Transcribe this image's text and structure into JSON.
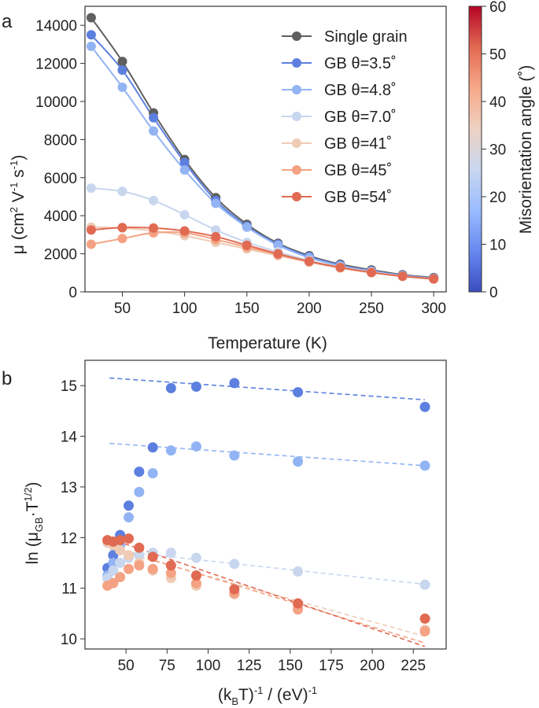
{
  "chart_data": [
    {
      "type": "line",
      "panel_label": "a",
      "xlabel": "Temperature (K)",
      "ylabel": {
        "base": "μ (cm",
        "sup1": "2",
        "mid1": " V",
        "sup2": "-1",
        "mid2": " s",
        "sup3": "-1",
        "end": ")"
      },
      "xlim": [
        20,
        310
      ],
      "ylim": [
        0,
        15000
      ],
      "xticks": [
        "50",
        "100",
        "150",
        "200",
        "250",
        "300"
      ],
      "xtick_values": [
        50,
        100,
        150,
        200,
        250,
        300
      ],
      "yticks": [
        "0",
        "2000",
        "4000",
        "6000",
        "8000",
        "10000",
        "12000",
        "14000"
      ],
      "ytick_values": [
        0,
        2000,
        4000,
        6000,
        8000,
        10000,
        12000,
        14000
      ],
      "grid": false,
      "legend_position": "top-right",
      "x": [
        25,
        50,
        75,
        100,
        125,
        150,
        175,
        200,
        225,
        250,
        275,
        300
      ],
      "series": [
        {
          "name": "Single grain",
          "color": "#5f5f5f",
          "values": [
            14400,
            12100,
            9400,
            6950,
            4950,
            3550,
            2550,
            1900,
            1450,
            1150,
            900,
            750
          ]
        },
        {
          "name": "GB θ=3.5˚",
          "color": "#5c7fe0",
          "values": [
            13500,
            11650,
            9150,
            6800,
            4800,
            3450,
            2500,
            1850,
            1400,
            1100,
            870,
            720
          ]
        },
        {
          "name": "GB θ=4.8˚",
          "color": "#92b4f4",
          "values": [
            12900,
            10750,
            8450,
            6400,
            4650,
            3400,
            2450,
            1800,
            1370,
            1080,
            850,
            700
          ]
        },
        {
          "name": "GB θ=7.0˚",
          "color": "#c8d6ee",
          "values": [
            5450,
            5280,
            4800,
            4050,
            3250,
            2600,
            2100,
            1650,
            1300,
            1050,
            830,
            690
          ]
        },
        {
          "name": "GB θ=41˚",
          "color": "#efcbb6",
          "values": [
            3400,
            3350,
            3200,
            2950,
            2600,
            2250,
            1900,
            1550,
            1250,
            1000,
            810,
            670
          ]
        },
        {
          "name": "GB θ=45˚",
          "color": "#f4a283",
          "values": [
            2500,
            2800,
            3100,
            3100,
            2750,
            2350,
            1950,
            1600,
            1280,
            1020,
            820,
            680
          ]
        },
        {
          "name": "GB θ=54˚",
          "color": "#e16a52",
          "values": [
            3250,
            3380,
            3350,
            3200,
            2900,
            2450,
            2000,
            1600,
            1280,
            1020,
            820,
            680
          ]
        }
      ],
      "colorbar": {
        "label": "Misorientation angle (˚)",
        "range": [
          0,
          60
        ],
        "ticks": [
          "0",
          "10",
          "20",
          "30",
          "40",
          "50",
          "60"
        ],
        "tick_values": [
          0,
          10,
          20,
          30,
          40,
          50,
          60
        ],
        "colormap": [
          "#3b4cc0",
          "#6788ee",
          "#9abbff",
          "#c9d7f0",
          "#edd1c2",
          "#f7a889",
          "#e26952",
          "#b40426"
        ]
      }
    },
    {
      "type": "scatter",
      "panel_label": "b",
      "xlabel": {
        "base": "(k",
        "sub": "B",
        "mid": "T)",
        "sup": "-1",
        "end": " / (eV)",
        "sup2": "-1"
      },
      "ylabel": {
        "base": "ln (μ",
        "sub": "GB",
        "mid": "·T",
        "sup": "1/2",
        "end": ")"
      },
      "xlim": [
        25,
        245
      ],
      "ylim": [
        9.8,
        15.5
      ],
      "xticks": [
        "50",
        "75",
        "100",
        "125",
        "150",
        "175",
        "200",
        "225"
      ],
      "xtick_values": [
        50,
        75,
        100,
        125,
        150,
        175,
        200,
        225
      ],
      "yticks": [
        "10",
        "11",
        "12",
        "13",
        "14",
        "15"
      ],
      "ytick_values": [
        10,
        11,
        12,
        13,
        14,
        15
      ],
      "grid": false,
      "series": [
        {
          "name": "GB θ=3.5˚",
          "color": "#5c7fe0",
          "points": [
            [
              38.7,
              11.4
            ],
            [
              42.2,
              11.65
            ],
            [
              46.4,
              12.05
            ],
            [
              51.6,
              12.63
            ],
            [
              58.0,
              13.3
            ],
            [
              66.3,
              13.78
            ],
            [
              77.4,
              14.95
            ],
            [
              92.8,
              14.98
            ],
            [
              116.0,
              15.05
            ],
            [
              154.7,
              14.87
            ],
            [
              232.1,
              14.58
            ]
          ],
          "fit": [
            [
              40,
              15.15
            ],
            [
              232,
              14.72
            ]
          ]
        },
        {
          "name": "GB θ=4.8˚",
          "color": "#92b4f4",
          "points": [
            [
              38.7,
              11.25
            ],
            [
              42.2,
              11.5
            ],
            [
              46.4,
              11.85
            ],
            [
              51.6,
              12.4
            ],
            [
              58.0,
              12.9
            ],
            [
              66.3,
              13.27
            ],
            [
              77.4,
              13.72
            ],
            [
              92.8,
              13.8
            ],
            [
              116.0,
              13.62
            ],
            [
              154.7,
              13.5
            ],
            [
              232.1,
              13.42
            ]
          ],
          "fit": [
            [
              40,
              13.86
            ],
            [
              232,
              13.42
            ]
          ]
        },
        {
          "name": "GB θ=7.0˚",
          "color": "#c8d6ee",
          "points": [
            [
              38.7,
              11.2
            ],
            [
              42.2,
              11.35
            ],
            [
              46.4,
              11.5
            ],
            [
              51.6,
              11.6
            ],
            [
              58.0,
              11.65
            ],
            [
              66.3,
              11.7
            ],
            [
              77.4,
              11.7
            ],
            [
              92.8,
              11.6
            ],
            [
              116.0,
              11.48
            ],
            [
              154.7,
              11.33
            ],
            [
              232.1,
              11.07
            ]
          ],
          "fit": [
            [
              40,
              11.75
            ],
            [
              232,
              11.08
            ]
          ]
        },
        {
          "name": "GB θ=41˚",
          "color": "#efcbb6",
          "points": [
            [
              38.7,
              11.9
            ],
            [
              42.2,
              11.85
            ],
            [
              46.4,
              11.75
            ],
            [
              51.6,
              11.65
            ],
            [
              58.0,
              11.5
            ],
            [
              66.3,
              11.35
            ],
            [
              77.4,
              11.2
            ],
            [
              92.8,
              11.05
            ],
            [
              116.0,
              10.88
            ],
            [
              154.7,
              10.62
            ],
            [
              232.1,
              10.18
            ]
          ],
          "fit": [
            [
              40,
              11.78
            ],
            [
              232,
              10.05
            ]
          ]
        },
        {
          "name": "GB θ=45˚",
          "color": "#f4a283",
          "points": [
            [
              38.7,
              11.05
            ],
            [
              42.2,
              11.1
            ],
            [
              46.4,
              11.22
            ],
            [
              51.6,
              11.38
            ],
            [
              58.0,
              11.45
            ],
            [
              66.3,
              11.38
            ],
            [
              77.4,
              11.3
            ],
            [
              92.8,
              11.1
            ],
            [
              116.0,
              10.9
            ],
            [
              154.7,
              10.58
            ],
            [
              232.1,
              10.15
            ]
          ],
          "fit": [
            [
              40,
              11.82
            ],
            [
              232,
              9.92
            ]
          ]
        },
        {
          "name": "GB θ=54˚",
          "color": "#e16a52",
          "points": [
            [
              38.7,
              11.95
            ],
            [
              42.2,
              11.92
            ],
            [
              46.4,
              11.95
            ],
            [
              51.6,
              11.98
            ],
            [
              58.0,
              11.8
            ],
            [
              66.3,
              11.62
            ],
            [
              77.4,
              11.45
            ],
            [
              92.8,
              11.25
            ],
            [
              116.0,
              10.98
            ],
            [
              154.7,
              10.7
            ],
            [
              232.1,
              10.4
            ]
          ],
          "fit": [
            [
              40,
              11.98
            ],
            [
              232,
              9.85
            ]
          ]
        }
      ]
    }
  ]
}
